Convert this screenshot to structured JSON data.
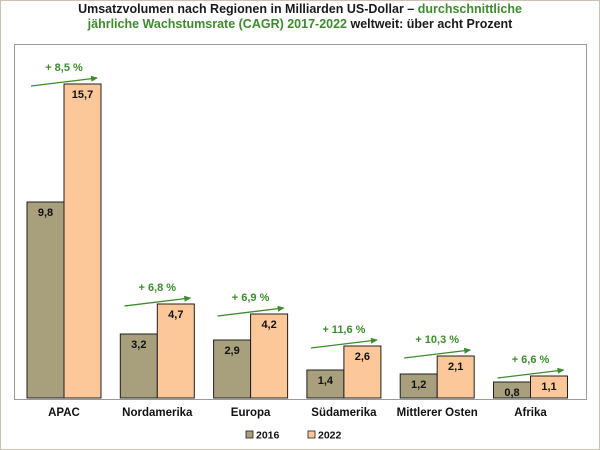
{
  "title": {
    "line1_plain": "Umsatzvolumen nach Regionen in Milliarden US-Dollar –",
    "line1_highlight": "durchschnittliche",
    "line2_highlight": "jährliche Wachstumsrate (CAGR) 2017-2022",
    "line2_plain": "weltweit: über acht Prozent"
  },
  "colors": {
    "series_2016": "#a8a07c",
    "series_2022": "#fcc89a",
    "bar_border": "#1f1f1f",
    "growth": "#3c8c2c"
  },
  "chart_data": {
    "type": "bar",
    "categories": [
      "APAC",
      "Nordamerika",
      "Europa",
      "Südamerika",
      "Mittlerer Osten",
      "Afrika"
    ],
    "series": [
      {
        "name": "2016",
        "values": [
          9.8,
          3.2,
          2.9,
          1.4,
          1.2,
          0.8
        ],
        "labels": [
          "9,8",
          "3,2",
          "2,9",
          "1,4",
          "1,2",
          "0,8"
        ]
      },
      {
        "name": "2022",
        "values": [
          15.7,
          4.7,
          4.2,
          2.6,
          2.1,
          1.1
        ],
        "labels": [
          "15,7",
          "4,7",
          "4,2",
          "2,6",
          "2,1",
          "1,1"
        ]
      }
    ],
    "growth_labels": [
      "+ 8,5 %",
      "+ 6,8 %",
      "+ 6,9 %",
      "+ 11,6 %",
      "+ 10,3 %",
      "+ 6,6 %"
    ],
    "ylim": [
      0,
      17.5
    ],
    "legend_position": "bottom-center",
    "grid": false
  }
}
